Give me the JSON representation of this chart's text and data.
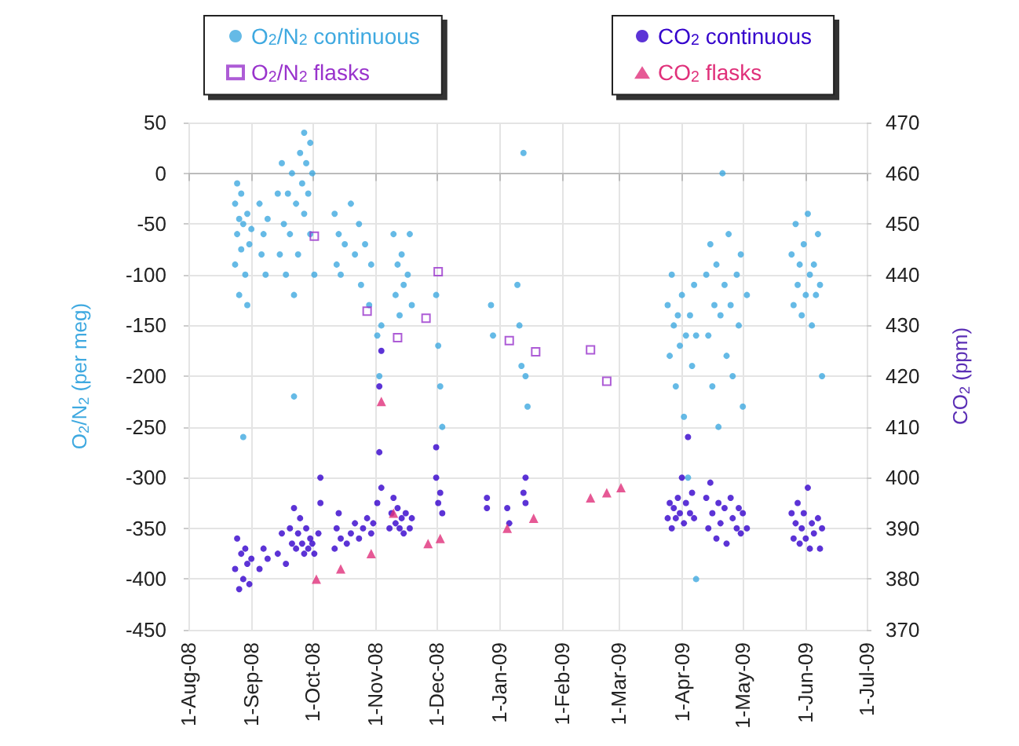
{
  "chart_data": {
    "type": "scatter",
    "xlabel": null,
    "ylabel": "O$_{2}$/N$_{2}$ (per meg)",
    "y2label": "CO$_{2}$ (ppm)",
    "xlim": [
      "2008-08-01",
      "2009-07-01"
    ],
    "xticks": [
      {
        "value": "2008-08-01",
        "label": "1-Aug-08"
      },
      {
        "value": "2008-09-01",
        "label": "1-Sep-08"
      },
      {
        "value": "2008-10-01",
        "label": "1-Oct-08"
      },
      {
        "value": "2008-11-01",
        "label": "1-Nov-08"
      },
      {
        "value": "2008-12-01",
        "label": "1-Dec-08"
      },
      {
        "value": "2009-01-01",
        "label": "1-Jan-09"
      },
      {
        "value": "2009-02-01",
        "label": "1-Feb-09"
      },
      {
        "value": "2009-03-01",
        "label": "1-Mar-09"
      },
      {
        "value": "2009-04-01",
        "label": "1-Apr-09"
      },
      {
        "value": "2009-05-01",
        "label": "1-May-09"
      },
      {
        "value": "2009-06-01",
        "label": "1-Jun-09"
      },
      {
        "value": "2009-07-01",
        "label": "1-Jul-09"
      }
    ],
    "ylim": [
      -450,
      50
    ],
    "yticks": [
      -450,
      -400,
      -350,
      -300,
      -250,
      -200,
      -150,
      -100,
      -50,
      0,
      50
    ],
    "y2lim": [
      370,
      470
    ],
    "y2ticks": [
      370,
      380,
      390,
      400,
      410,
      420,
      430,
      440,
      450,
      460,
      470
    ],
    "grid": true,
    "legend": "top",
    "series": [
      {
        "name": "O$_{2}$/N$_{2}$ continuous",
        "color": "#3fa9e0",
        "marker": "circle",
        "axis": "y",
        "x": [
          "2008-08-24",
          "2008-08-24",
          "2008-08-25",
          "2008-08-25",
          "2008-08-26",
          "2008-08-26",
          "2008-08-27",
          "2008-08-27",
          "2008-08-28",
          "2008-08-28",
          "2008-08-29",
          "2008-08-30",
          "2008-08-30",
          "2008-08-31",
          "2008-09-01",
          "2008-09-05",
          "2008-09-06",
          "2008-09-07",
          "2008-09-08",
          "2008-09-09",
          "2008-09-14",
          "2008-09-15",
          "2008-09-16",
          "2008-09-17",
          "2008-09-18",
          "2008-09-19",
          "2008-09-20",
          "2008-09-21",
          "2008-09-22",
          "2008-09-22",
          "2008-09-23",
          "2008-09-24",
          "2008-09-25",
          "2008-09-26",
          "2008-09-27",
          "2008-09-27",
          "2008-09-28",
          "2008-09-29",
          "2008-09-30",
          "2008-09-30",
          "2008-10-01",
          "2008-10-02",
          "2008-10-12",
          "2008-10-13",
          "2008-10-14",
          "2008-10-15",
          "2008-10-17",
          "2008-10-20",
          "2008-10-22",
          "2008-10-24",
          "2008-10-25",
          "2008-10-27",
          "2008-10-29",
          "2008-10-30",
          "2008-11-02",
          "2008-11-03",
          "2008-11-04",
          "2008-11-10",
          "2008-11-11",
          "2008-11-12",
          "2008-11-13",
          "2008-11-14",
          "2008-11-15",
          "2008-11-17",
          "2008-11-18",
          "2008-11-19",
          "2008-12-01",
          "2008-12-02",
          "2008-12-03",
          "2008-12-04",
          "2008-12-28",
          "2008-12-29",
          "2009-01-10",
          "2009-01-11",
          "2009-01-12",
          "2009-01-13",
          "2009-01-14",
          "2009-01-15",
          "2009-03-25",
          "2009-03-26",
          "2009-03-27",
          "2009-03-28",
          "2009-03-29",
          "2009-03-30",
          "2009-03-31",
          "2009-04-01",
          "2009-04-02",
          "2009-04-03",
          "2009-04-04",
          "2009-04-05",
          "2009-04-06",
          "2009-04-07",
          "2009-04-08",
          "2009-04-08",
          "2009-04-13",
          "2009-04-14",
          "2009-04-15",
          "2009-04-16",
          "2009-04-17",
          "2009-04-18",
          "2009-04-19",
          "2009-04-20",
          "2009-04-21",
          "2009-04-22",
          "2009-04-23",
          "2009-04-24",
          "2009-04-25",
          "2009-04-26",
          "2009-04-28",
          "2009-04-29",
          "2009-04-30",
          "2009-05-01",
          "2009-05-03",
          "2009-05-25",
          "2009-05-26",
          "2009-05-27",
          "2009-05-28",
          "2009-05-29",
          "2009-05-30",
          "2009-05-31",
          "2009-06-01",
          "2009-06-02",
          "2009-06-03",
          "2009-06-04",
          "2009-06-05",
          "2009-06-06",
          "2009-06-07",
          "2009-06-08",
          "2009-06-09"
        ],
        "values": [
          -30,
          -90,
          -10,
          -60,
          -45,
          -120,
          -20,
          -75,
          -50,
          -260,
          -100,
          -40,
          -130,
          -70,
          -55,
          -30,
          -80,
          -60,
          -100,
          -45,
          -20,
          -80,
          10,
          -50,
          -100,
          -20,
          -60,
          0,
          -120,
          -220,
          -30,
          -80,
          20,
          -10,
          40,
          -40,
          10,
          -20,
          30,
          -60,
          0,
          -100,
          -40,
          -90,
          -60,
          -100,
          -70,
          -30,
          -80,
          -50,
          -110,
          -70,
          -130,
          -90,
          -160,
          -200,
          -150,
          -60,
          -120,
          -90,
          -140,
          -80,
          -110,
          -100,
          -60,
          -130,
          -120,
          -170,
          -210,
          -250,
          -130,
          -160,
          -110,
          -150,
          -190,
          20,
          -200,
          -230,
          -130,
          -180,
          -100,
          -150,
          -210,
          -140,
          -170,
          -120,
          -240,
          -160,
          -300,
          -140,
          -190,
          -110,
          -160,
          -400,
          -100,
          -160,
          -70,
          -210,
          -130,
          -90,
          -250,
          -140,
          0,
          -110,
          -180,
          -60,
          -130,
          -200,
          -100,
          -150,
          -80,
          -230,
          -120,
          -80,
          -130,
          -50,
          -110,
          -90,
          -140,
          -70,
          -120,
          -40,
          -100,
          -150,
          -90,
          -120,
          -60,
          -110,
          -200
        ]
      },
      {
        "name": "O$_{2}$/N$_{2}$ flasks",
        "color": "#9933cc",
        "marker": "square",
        "axis": "y",
        "x": [
          "2008-10-02",
          "2008-10-28",
          "2008-11-12",
          "2008-11-26",
          "2008-12-02",
          "2009-01-06",
          "2009-01-19",
          "2009-02-15",
          "2009-02-23"
        ],
        "values": [
          -62,
          -136,
          -162,
          -143,
          -97,
          -165,
          -176,
          -174,
          -205
        ]
      },
      {
        "name": "CO$_{2}$ continuous",
        "color": "#3300cc",
        "marker": "circle",
        "axis": "y2",
        "x": [
          "2008-08-24",
          "2008-08-25",
          "2008-08-26",
          "2008-08-27",
          "2008-08-28",
          "2008-08-29",
          "2008-08-30",
          "2008-08-31",
          "2008-09-01",
          "2008-09-05",
          "2008-09-07",
          "2008-09-09",
          "2008-09-14",
          "2008-09-16",
          "2008-09-18",
          "2008-09-20",
          "2008-09-21",
          "2008-09-22",
          "2008-09-23",
          "2008-09-24",
          "2008-09-25",
          "2008-09-26",
          "2008-09-27",
          "2008-09-28",
          "2008-09-29",
          "2008-09-30",
          "2008-10-01",
          "2008-10-02",
          "2008-10-04",
          "2008-10-05",
          "2008-10-05",
          "2008-10-12",
          "2008-10-13",
          "2008-10-14",
          "2008-10-15",
          "2008-10-18",
          "2008-10-20",
          "2008-10-22",
          "2008-10-24",
          "2008-10-26",
          "2008-10-28",
          "2008-10-30",
          "2008-10-31",
          "2008-11-02",
          "2008-11-03",
          "2008-11-03",
          "2008-11-04",
          "2008-11-04",
          "2008-11-08",
          "2008-11-09",
          "2008-11-10",
          "2008-11-11",
          "2008-11-12",
          "2008-11-13",
          "2008-11-14",
          "2008-11-15",
          "2008-11-16",
          "2008-11-18",
          "2008-11-19",
          "2008-12-01",
          "2008-12-01",
          "2008-12-02",
          "2008-12-03",
          "2008-12-04",
          "2008-12-26",
          "2008-12-26",
          "2009-01-05",
          "2009-01-06",
          "2009-01-13",
          "2009-01-14",
          "2009-01-14",
          "2009-03-25",
          "2009-03-26",
          "2009-03-27",
          "2009-03-28",
          "2009-03-29",
          "2009-03-30",
          "2009-03-31",
          "2009-04-01",
          "2009-04-02",
          "2009-04-03",
          "2009-04-04",
          "2009-04-05",
          "2009-04-06",
          "2009-04-07",
          "2009-04-13",
          "2009-04-14",
          "2009-04-15",
          "2009-04-16",
          "2009-04-18",
          "2009-04-19",
          "2009-04-20",
          "2009-04-22",
          "2009-04-23",
          "2009-04-25",
          "2009-04-26",
          "2009-04-28",
          "2009-04-29",
          "2009-04-30",
          "2009-05-01",
          "2009-05-03",
          "2009-05-25",
          "2009-05-26",
          "2009-05-27",
          "2009-05-28",
          "2009-05-29",
          "2009-05-30",
          "2009-05-31",
          "2009-06-01",
          "2009-06-02",
          "2009-06-03",
          "2009-06-04",
          "2009-06-05",
          "2009-06-07",
          "2009-06-08",
          "2009-06-09"
        ],
        "values": [
          382,
          388,
          378,
          385,
          380,
          386,
          383,
          379,
          384,
          382,
          386,
          384,
          385,
          389,
          383,
          390,
          387,
          394,
          386,
          389,
          392,
          387,
          385,
          390,
          386,
          388,
          387,
          385,
          389,
          400,
          395,
          386,
          390,
          393,
          388,
          387,
          389,
          391,
          388,
          390,
          392,
          389,
          391,
          395,
          405,
          418,
          425,
          398,
          390,
          393,
          396,
          391,
          394,
          390,
          392,
          389,
          393,
          390,
          392,
          400,
          406,
          395,
          397,
          393,
          394,
          396,
          394,
          391,
          397,
          400,
          395,
          392,
          395,
          390,
          394,
          392,
          396,
          393,
          400,
          391,
          395,
          408,
          393,
          397,
          392,
          396,
          390,
          399,
          393,
          388,
          395,
          391,
          394,
          387,
          396,
          392,
          390,
          394,
          389,
          393,
          390,
          393,
          388,
          391,
          395,
          387,
          390,
          393,
          388,
          398,
          386,
          391,
          389,
          392,
          386,
          390
        ]
      },
      {
        "name": "CO$_{2}$ flasks",
        "color": "#e0307a",
        "marker": "triangle",
        "axis": "y2",
        "x": [
          "2008-10-03",
          "2008-10-15",
          "2008-10-30",
          "2008-11-04",
          "2008-11-10",
          "2008-11-27",
          "2008-12-03",
          "2009-01-05",
          "2009-01-18",
          "2009-02-15",
          "2009-02-23",
          "2009-03-02"
        ],
        "values": [
          380,
          382,
          385,
          415,
          393,
          387,
          388,
          390,
          392,
          396,
          397,
          398
        ]
      }
    ]
  }
}
